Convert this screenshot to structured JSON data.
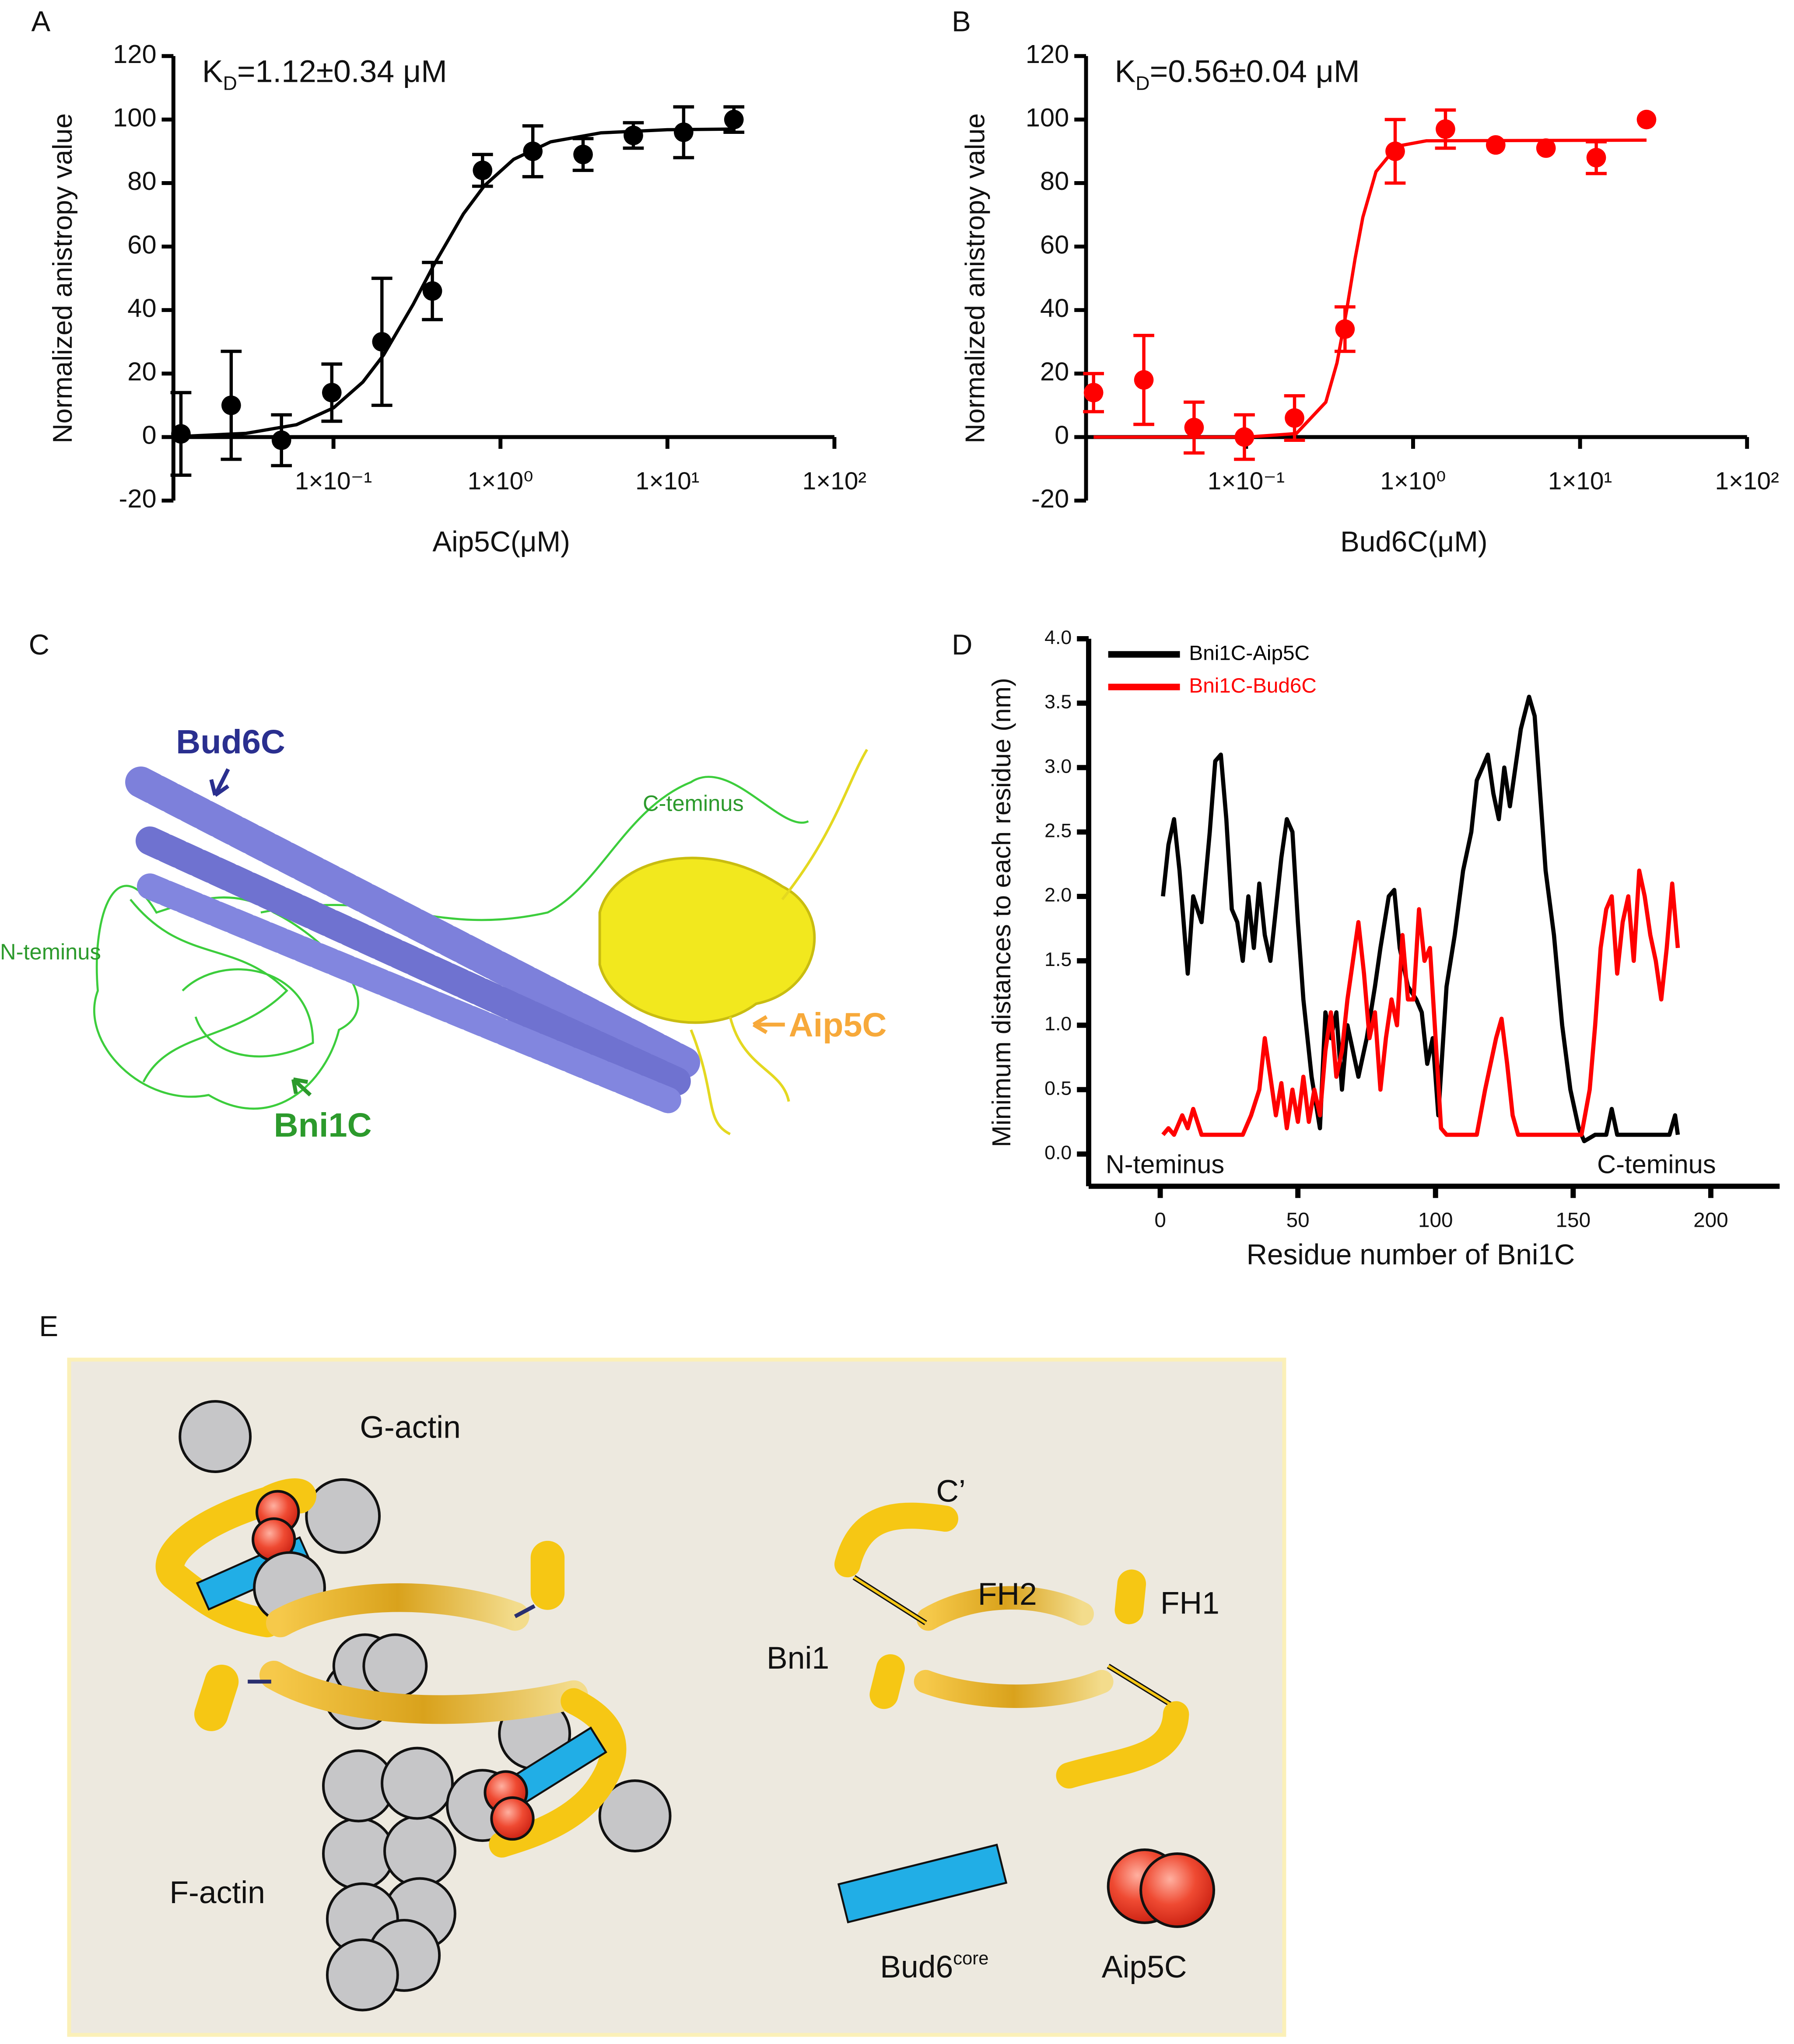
{
  "panel_labels": [
    "A",
    "B",
    "C",
    "D",
    "E"
  ],
  "chart_data": [
    {
      "type": "scatter",
      "xscale": "log",
      "annotation": {
        "main": "K",
        "sub": "D",
        "rest": "=1.12±0.34 μM"
      },
      "ylabel": "Normalized anistropy value",
      "xlabel": "Aip5C(μM)",
      "xlim": [
        0.011,
        100
      ],
      "ylim": [
        -20,
        120
      ],
      "xticks": [
        {
          "value": 0.1,
          "label": "1×10⁻¹"
        },
        {
          "value": 1,
          "label": "1×10⁰"
        },
        {
          "value": 10,
          "label": "1×10¹"
        },
        {
          "value": 100,
          "label": "1×10²"
        }
      ],
      "yticks": [
        -20,
        0,
        20,
        40,
        60,
        80,
        100,
        120
      ],
      "color": "#000000",
      "x": [
        0.0122,
        0.0244,
        0.0488,
        0.0977,
        0.195,
        0.391,
        0.781,
        1.5625,
        3.125,
        6.25,
        12.5,
        25
      ],
      "values": [
        1,
        10,
        -1,
        14,
        30,
        46,
        84,
        90,
        89,
        95,
        96,
        100
      ],
      "errors": [
        13,
        17,
        8,
        9,
        20,
        9,
        5,
        8,
        5,
        4,
        8,
        4
      ],
      "fit": {
        "x": [
          0.0122,
          0.03,
          0.06,
          0.1,
          0.15,
          0.2,
          0.3,
          0.4,
          0.6,
          0.8,
          1.2,
          2,
          4,
          10,
          25
        ],
        "values": [
          0.2,
          1.2,
          3.9,
          9.2,
          17.3,
          25.9,
          41.8,
          54.3,
          70.3,
          79.1,
          87.5,
          93,
          95.8,
          96.8,
          97
        ]
      }
    },
    {
      "type": "scatter",
      "xscale": "log",
      "annotation": {
        "main": "K",
        "sub": "D",
        "rest": "=0.56±0.04 μM"
      },
      "ylabel": "Normalized anistropy value",
      "xlabel": "Bud6C(μM)",
      "xlim": [
        0.011,
        100
      ],
      "ylim": [
        -20,
        120
      ],
      "xticks": [
        {
          "value": 0.1,
          "label": "1×10⁻¹"
        },
        {
          "value": 1,
          "label": "1×10⁰"
        },
        {
          "value": 10,
          "label": "1×10¹"
        },
        {
          "value": 100,
          "label": "1×10²"
        }
      ],
      "yticks": [
        -20,
        0,
        20,
        40,
        60,
        80,
        100,
        120
      ],
      "color": "#ff0000",
      "x": [
        0.0122,
        0.0244,
        0.0488,
        0.0977,
        0.195,
        0.391,
        0.781,
        1.5625,
        3.125,
        6.25,
        12.5,
        25
      ],
      "values": [
        14,
        18,
        3,
        0,
        6,
        34,
        90,
        97,
        92,
        91,
        88,
        100
      ],
      "errors": [
        6,
        14,
        8,
        7,
        7,
        7,
        10,
        6,
        null,
        null,
        5,
        null
      ],
      "fit": {
        "x": [
          0.0122,
          0.1,
          0.2,
          0.3,
          0.35,
          0.4,
          0.45,
          0.5,
          0.6,
          0.8,
          1.2,
          25
        ],
        "values": [
          0,
          0,
          1.1,
          11,
          23.4,
          40,
          56.3,
          69.2,
          83.6,
          91.6,
          93.3,
          93.5
        ]
      }
    },
    {
      "type": "line",
      "ylabel": "Minimum distances to each residue (nm)",
      "xlabel": "Residue number of Bni1C",
      "xlim": [
        -26,
        225
      ],
      "ylim": [
        -0.25,
        4.0
      ],
      "xticks": [
        0,
        50,
        100,
        150,
        200
      ],
      "yticks": [
        {
          "value": 0,
          "label": "0.0"
        },
        0.5,
        {
          "value": 1,
          "label": "1.0"
        },
        1.5,
        {
          "value": 2,
          "label": "2.0"
        },
        2.5,
        {
          "value": 3,
          "label": "3.0"
        },
        3.5,
        {
          "value": 4,
          "label": "4.0"
        }
      ],
      "annotations": [
        "N-teminus",
        "C-teminus"
      ],
      "series": [
        {
          "name": "Bni1C-Aip5C",
          "color": "#000000",
          "x": [
            1,
            3,
            5,
            7,
            10,
            12,
            15,
            18,
            20,
            22,
            24,
            26,
            28,
            30,
            32,
            34,
            36,
            38,
            40,
            42,
            44,
            46,
            48,
            50,
            52,
            55,
            58,
            60,
            62,
            64,
            66,
            68,
            70,
            72,
            75,
            78,
            80,
            83,
            85,
            87,
            90,
            93,
            95,
            97,
            99,
            101,
            104,
            107,
            110,
            113,
            115,
            117,
            119,
            121,
            123,
            125,
            127,
            129,
            131,
            134,
            136,
            138,
            140,
            143,
            146,
            149,
            152,
            154,
            158,
            162,
            164,
            166,
            175,
            185,
            187,
            188
          ],
          "values": [
            2.0,
            2.4,
            2.6,
            2.2,
            1.4,
            2.0,
            1.8,
            2.5,
            3.05,
            3.1,
            2.6,
            1.9,
            1.8,
            1.5,
            2.0,
            1.6,
            2.1,
            1.7,
            1.5,
            1.9,
            2.3,
            2.6,
            2.5,
            1.8,
            1.2,
            0.6,
            0.2,
            1.1,
            0.9,
            1.1,
            0.5,
            1.0,
            0.8,
            0.6,
            0.9,
            1.3,
            1.6,
            2.0,
            2.05,
            1.6,
            1.3,
            1.2,
            1.1,
            0.7,
            0.9,
            0.3,
            1.3,
            1.7,
            2.2,
            2.5,
            2.9,
            3.0,
            3.1,
            2.8,
            2.6,
            3.0,
            2.7,
            3.0,
            3.3,
            3.55,
            3.4,
            2.8,
            2.2,
            1.7,
            1.0,
            0.5,
            0.2,
            0.1,
            0.15,
            0.15,
            0.35,
            0.15,
            0.15,
            0.15,
            0.3,
            0.15
          ]
        },
        {
          "name": "Bni1C-Bud6C",
          "color": "#ff0000",
          "x": [
            1,
            3,
            5,
            8,
            10,
            12,
            15,
            20,
            30,
            33,
            36,
            38,
            40,
            42,
            44,
            46,
            48,
            50,
            52,
            54,
            56,
            58,
            60,
            62,
            64,
            66,
            68,
            70,
            72,
            74,
            76,
            78,
            80,
            82,
            84,
            86,
            88,
            90,
            92,
            94,
            96,
            98,
            100,
            102,
            104,
            110,
            115,
            118,
            120,
            122,
            124,
            126,
            128,
            130,
            140,
            150,
            153,
            156,
            158,
            160,
            162,
            164,
            166,
            168,
            170,
            172,
            174,
            176,
            178,
            180,
            182,
            184,
            186,
            188
          ],
          "values": [
            0.15,
            0.2,
            0.15,
            0.3,
            0.2,
            0.35,
            0.15,
            0.15,
            0.15,
            0.3,
            0.5,
            0.9,
            0.6,
            0.3,
            0.55,
            0.2,
            0.5,
            0.25,
            0.6,
            0.25,
            0.5,
            0.3,
            0.8,
            1.1,
            0.6,
            0.8,
            1.2,
            1.5,
            1.8,
            1.4,
            0.9,
            1.1,
            0.5,
            0.9,
            1.2,
            1.0,
            1.7,
            1.2,
            1.2,
            1.9,
            1.5,
            1.6,
            0.9,
            0.2,
            0.15,
            0.15,
            0.15,
            0.5,
            0.7,
            0.9,
            1.05,
            0.7,
            0.3,
            0.15,
            0.15,
            0.15,
            0.15,
            0.5,
            1.0,
            1.6,
            1.9,
            2.0,
            1.4,
            1.8,
            2.0,
            1.5,
            2.2,
            2.0,
            1.7,
            1.5,
            1.2,
            1.6,
            2.1,
            1.6
          ]
        }
      ]
    }
  ],
  "structure": {
    "bud6c": "Bud6C",
    "c_terminus": "C-teminus",
    "n_terminus": "N-teminus",
    "bni1c": "Bni1C",
    "aip5c": "Aip5C"
  },
  "model": {
    "g_actin": "G-actin",
    "c_prime": "C’",
    "fh2": "FH2",
    "fh1": "FH1",
    "bni1": "Bni1",
    "f_actin": "F-actin",
    "bud6": "Bud6",
    "bud6_sup": "core",
    "aip5c": "Aip5C"
  }
}
